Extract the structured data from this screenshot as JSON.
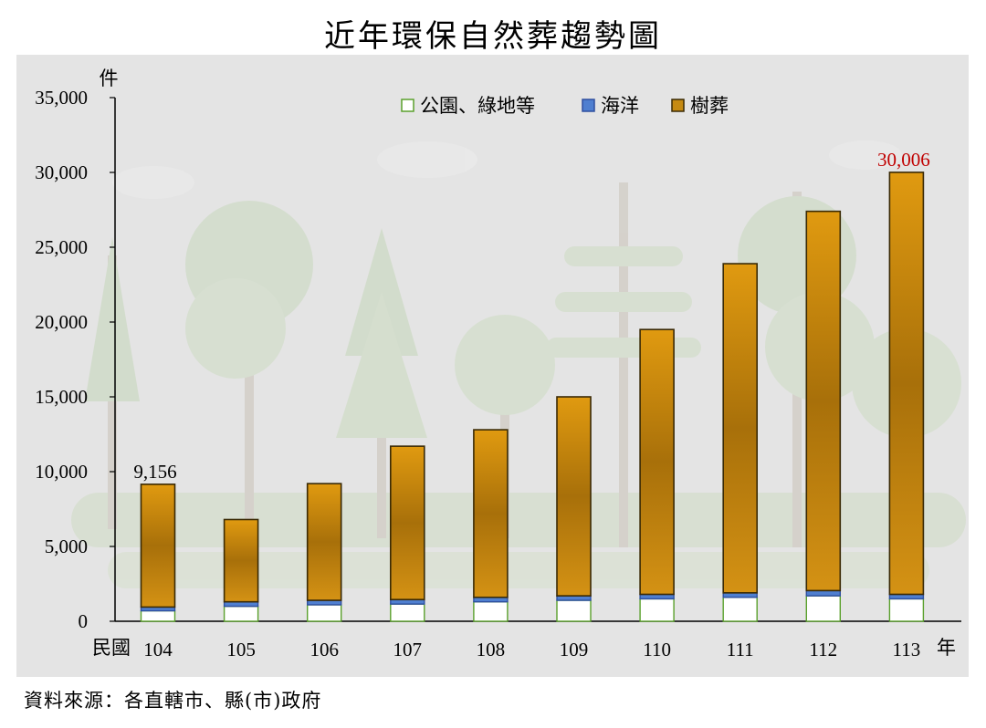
{
  "page": {
    "title": "近年環保自然葬趨勢圖",
    "source": "資料來源：各直轄市、縣(市)政府"
  },
  "chart_data": {
    "type": "bar",
    "stacked": true,
    "title": "近年環保自然葬趨勢圖",
    "ylabel": "件",
    "xlabel": "年",
    "x_prefix": "民國",
    "ylim": [
      0,
      35000
    ],
    "yticks": [
      0,
      5000,
      10000,
      15000,
      20000,
      25000,
      30000,
      35000
    ],
    "ytick_labels": [
      "0",
      "5,000",
      "10,000",
      "15,000",
      "20,000",
      "25,000",
      "30,000",
      "35,000"
    ],
    "categories": [
      "104",
      "105",
      "106",
      "107",
      "108",
      "109",
      "110",
      "111",
      "112",
      "113"
    ],
    "series": [
      {
        "name": "公園、綠地等",
        "values": [
          700,
          1000,
          1100,
          1150,
          1300,
          1400,
          1500,
          1600,
          1700,
          1500
        ],
        "color": "#ffffff",
        "stroke": "#5aa02c"
      },
      {
        "name": "海洋",
        "values": [
          250,
          300,
          300,
          300,
          300,
          300,
          300,
          300,
          350,
          300
        ],
        "color": "#4f7fd0",
        "stroke": "#2f4f9f"
      },
      {
        "name": "樹葬",
        "values": [
          8206,
          5500,
          7800,
          10250,
          11200,
          13300,
          17700,
          22000,
          25350,
          28206
        ],
        "color": "#c58a12",
        "stroke": "#3a2a05"
      }
    ],
    "annotations": [
      {
        "category": "104",
        "text": "9,156",
        "color": "#000000"
      },
      {
        "category": "113",
        "text": "30,006",
        "color": "#c00000"
      }
    ],
    "legend_position": "top-center",
    "grid": false
  }
}
